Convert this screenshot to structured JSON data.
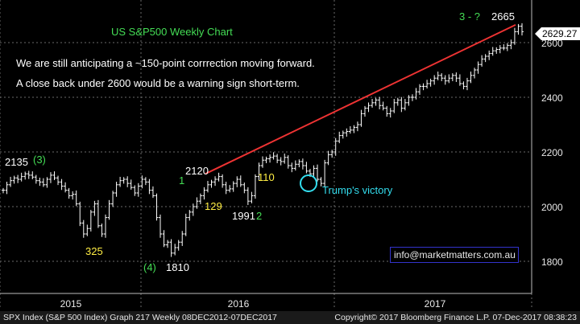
{
  "chart_data": {
    "type": "bar",
    "subtype": "ohlc-weekly",
    "title": "US S&P500 Weekly Chart",
    "annotations_text": [
      "We are still anticipating a ~150-point corrrection moving forward.",
      "A close back under 2600 would be a warning sign short-term."
    ],
    "y_ticks": [
      1800,
      2000,
      2200,
      2400,
      2600
    ],
    "ylim": [
      1700,
      2720
    ],
    "x_ticks": [
      "2015",
      "2016",
      "2017"
    ],
    "last_price": "2629.27",
    "labels": {
      "high_2015": "2135",
      "wave_3_top": "(3)",
      "low_2015": "325",
      "wave_4": "(4)",
      "low_2016": "1810",
      "wave_1": "1",
      "peak_2016": "2120",
      "pullback_1": "129",
      "low_1991": "1991",
      "wave_2": "2",
      "pullback_2": "110",
      "trump": "Trump's victory",
      "wave_3_now": "3 - ?",
      "target": "2665"
    },
    "trendline": {
      "from": {
        "x": "2016-W22",
        "y": 2120
      },
      "to": {
        "x": "2017-W48",
        "y": 2665
      }
    },
    "series": [
      {
        "weekly_close_approx": [
          2060,
          2080,
          2095,
          2105,
          2100,
          2110,
          2120,
          2115,
          2108,
          2095,
          2090,
          2080,
          2100,
          2115,
          2105,
          2090,
          2075,
          2060,
          2040,
          2045,
          2010,
          1940,
          1900,
          1920,
          1980,
          2010,
          1930,
          1900,
          1960,
          2010,
          2050,
          2080,
          2095,
          2100,
          2085,
          2070,
          2050,
          2075,
          2100,
          2090,
          2060,
          2040,
          1960,
          1900,
          1860,
          1870,
          1830,
          1850,
          1870,
          1900,
          1960,
          1980,
          2000,
          2020,
          2040,
          2060,
          2080,
          2090,
          2100,
          2110,
          2080,
          2060,
          2065,
          2085,
          2100,
          2080,
          2060,
          2020,
          2040,
          2110,
          2150,
          2170,
          2175,
          2180,
          2185,
          2170,
          2165,
          2180,
          2150,
          2140,
          2155,
          2165,
          2150,
          2130,
          2120,
          2140,
          2100,
          2085,
          2160,
          2190,
          2200,
          2240,
          2260,
          2270,
          2275,
          2280,
          2290,
          2300,
          2340,
          2360,
          2370,
          2380,
          2390,
          2370,
          2360,
          2340,
          2350,
          2380,
          2390,
          2360,
          2380,
          2400,
          2400,
          2420,
          2440,
          2440,
          2450,
          2460,
          2470,
          2480,
          2470,
          2460,
          2470,
          2480,
          2470,
          2450,
          2440,
          2460,
          2480,
          2500,
          2520,
          2540,
          2550,
          2560,
          2570,
          2575,
          2580,
          2580,
          2590,
          2600,
          2640,
          2660,
          2640
        ]
      }
    ]
  },
  "footer": {
    "left": "SPX Index (S&P 500 Index) Graph 217  Weekly 08DEC2012-07DEC2017",
    "right": "Copyright© 2017 Bloomberg Finance L.P.    07-Dec-2017 08:38:23"
  },
  "email": "info@marketmatters.com.au",
  "colors": {
    "background": "#000000",
    "bars": "#ffffff",
    "trendline": "#ee3333",
    "title_green": "#44dd55",
    "yellow_labels": "#ffee44",
    "cyan": "#33ddee",
    "grid": "#6a6a6a"
  }
}
